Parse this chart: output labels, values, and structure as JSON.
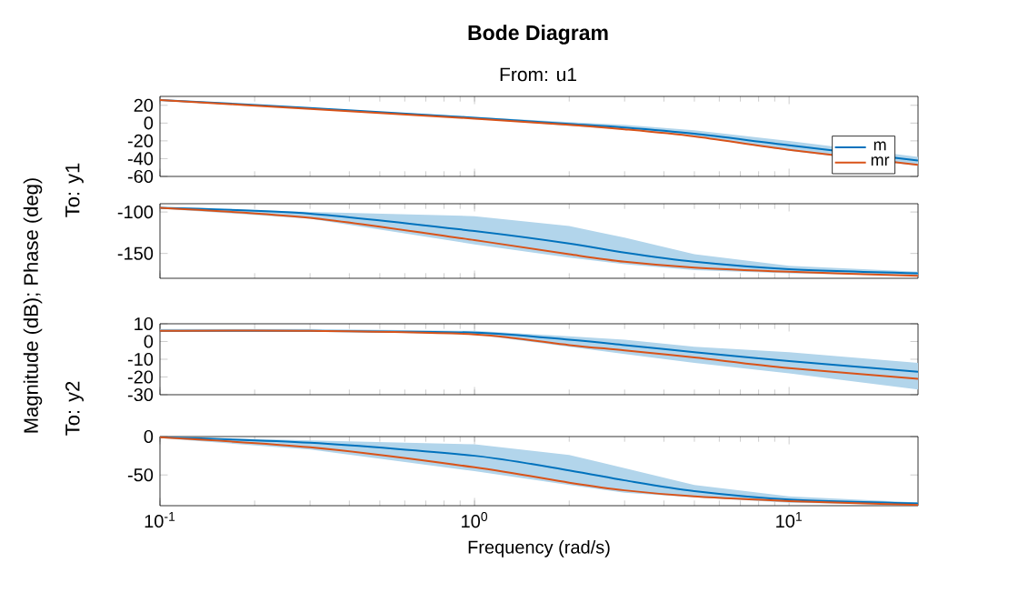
{
  "chart_data": [
    {
      "type": "line",
      "title": "Bode Diagram",
      "subtitle": "From: u1",
      "ylabel": "To: y1",
      "annotations": [
        "Magnitude (dB); Phase (deg)"
      ],
      "log": "x",
      "legend": "bottom right",
      "tick_labels": "y",
      "grid": false,
      "x": [
        0.1,
        0.3,
        1,
        2,
        3,
        5,
        10,
        25.7
      ],
      "xlim": [
        0.1,
        25.7
      ],
      "xticks": [
        0.1,
        1,
        10
      ],
      "ylim": [
        -60,
        30
      ],
      "yticks": [
        -60,
        -40,
        -20,
        0,
        20
      ],
      "series": [
        {
          "name": "m",
          "color": "#0072bd",
          "values": [
            26,
            17,
            6,
            -1,
            -5,
            -12,
            -25,
            -42
          ],
          "upper": [
            26,
            17,
            7,
            1,
            -2,
            -8,
            -20,
            -38
          ],
          "lower": [
            26,
            16,
            5,
            -3,
            -7,
            -15,
            -31,
            -48
          ]
        },
        {
          "name": "mr",
          "color": "#d95319",
          "values": [
            26,
            16,
            5,
            -2,
            -7,
            -15,
            -30,
            -47
          ]
        }
      ]
    },
    {
      "type": "line",
      "log": "x",
      "tick_labels": "y",
      "grid": false,
      "x": [
        0.1,
        0.3,
        1,
        2,
        3,
        5,
        10,
        25.7
      ],
      "xlim": [
        0.1,
        25.7
      ],
      "xticks": [
        0.1,
        1,
        10
      ],
      "ylim": [
        -180,
        -90
      ],
      "yticks": [
        -150,
        -100
      ],
      "series": [
        {
          "color": "#0072bd",
          "values": [
            -95,
            -102,
            -123,
            -138,
            -149,
            -160,
            -169,
            -174
          ],
          "upper": [
            -94,
            -100,
            -105,
            -117,
            -131,
            -151,
            -165,
            -172
          ],
          "lower": [
            -96,
            -108,
            -139,
            -155,
            -163,
            -170,
            -174,
            -177
          ]
        },
        {
          "color": "#d95319",
          "values": [
            -95,
            -107,
            -134,
            -151,
            -160,
            -167,
            -172,
            -177
          ]
        }
      ]
    },
    {
      "type": "line",
      "ylabel": "To: y2",
      "log": "x",
      "tick_labels": "y",
      "grid": false,
      "x": [
        0.1,
        0.3,
        1,
        2,
        3,
        5,
        10,
        25.7
      ],
      "xlim": [
        0.1,
        25.7
      ],
      "xticks": [
        0.1,
        1,
        10
      ],
      "ylim": [
        -30,
        10
      ],
      "yticks": [
        -30,
        -20,
        -10,
        0,
        10
      ],
      "series": [
        {
          "color": "#0072bd",
          "values": [
            6,
            6,
            5,
            1,
            -2,
            -6,
            -11,
            -17
          ],
          "upper": [
            7,
            7,
            6,
            3,
            1,
            -3,
            -6,
            -12
          ],
          "lower": [
            6,
            6,
            4,
            -3,
            -7,
            -12,
            -18,
            -27
          ]
        },
        {
          "color": "#d95319",
          "values": [
            6,
            6,
            4,
            -2,
            -5,
            -9,
            -15,
            -21
          ]
        }
      ]
    },
    {
      "type": "line",
      "xlabel": "Frequency (rad/s)",
      "log": "x",
      "grid": false,
      "x": [
        0.1,
        0.3,
        1,
        2,
        3,
        5,
        10,
        25.7
      ],
      "xlim": [
        0.1,
        25.7
      ],
      "xticks": [
        {
          "value": 0.1,
          "label": "10$^{-1}$"
        },
        {
          "value": 1,
          "label": "10$^{0}$"
        },
        {
          "value": 10,
          "label": "10$^{1}$"
        }
      ],
      "ylim": [
        -90,
        0
      ],
      "yticks": [
        -50,
        0
      ],
      "series": [
        {
          "color": "#0072bd",
          "values": [
            -1,
            -8,
            -25,
            -44,
            -57,
            -71,
            -82,
            -87
          ],
          "upper": [
            0,
            -5,
            -10,
            -24,
            -41,
            -63,
            -78,
            -86
          ],
          "lower": [
            -2,
            -17,
            -45,
            -63,
            -73,
            -79,
            -86,
            -89
          ]
        },
        {
          "color": "#d95319",
          "values": [
            -1,
            -14,
            -40,
            -60,
            -70,
            -78,
            -84,
            -89
          ]
        }
      ]
    }
  ]
}
